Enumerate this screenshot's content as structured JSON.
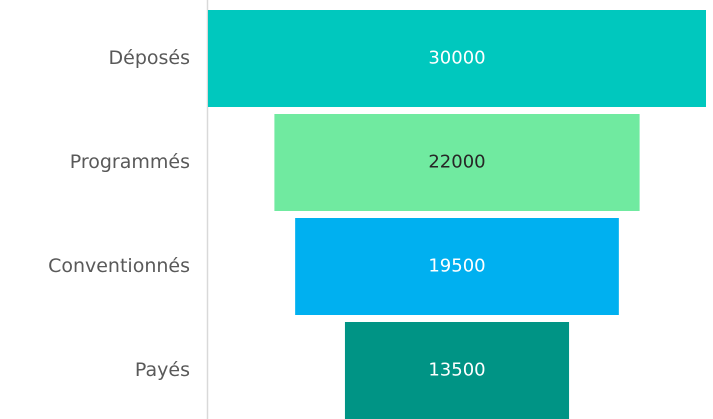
{
  "chart_data": {
    "type": "funnel",
    "categories": [
      "Déposés",
      "Programmés",
      "Conventionnés",
      "Payés"
    ],
    "values": [
      30000,
      22000,
      19500,
      13500
    ],
    "colors": [
      "#00c8be",
      "#70eaa0",
      "#00b0f0",
      "#009485"
    ],
    "label_colors": [
      "#ffffff",
      "#262626",
      "#ffffff",
      "#ffffff"
    ]
  }
}
